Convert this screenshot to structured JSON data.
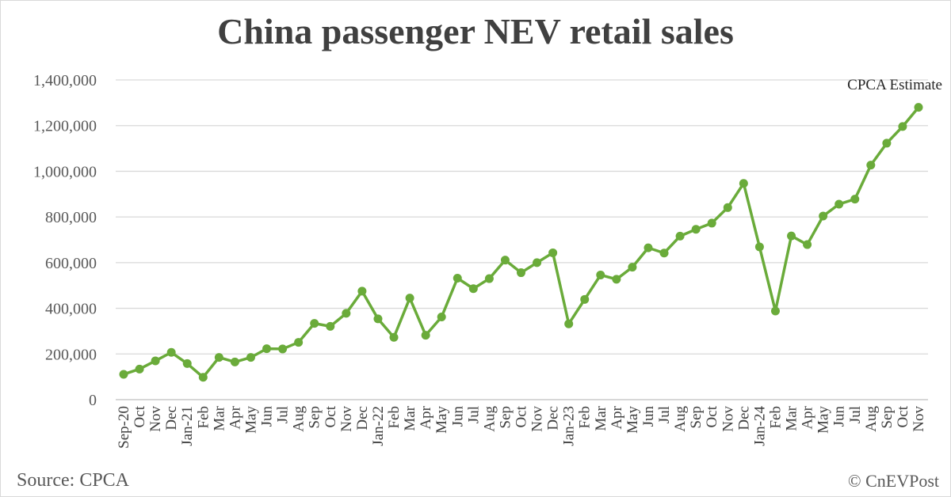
{
  "chart_data": {
    "type": "line",
    "title": "China passenger NEV retail sales",
    "categories": [
      "Sep-20",
      "Oct",
      "Nov",
      "Dec",
      "Jan-21",
      "Feb",
      "Mar",
      "Apr",
      "May",
      "Jun",
      "Jul",
      "Aug",
      "Sep",
      "Oct",
      "Nov",
      "Dec",
      "Jan-22",
      "Feb",
      "Mar",
      "Apr",
      "May",
      "Jun",
      "Jul",
      "Aug",
      "Sep",
      "Oct",
      "Nov",
      "Dec",
      "Jan-23",
      "Feb",
      "Mar",
      "Apr",
      "May",
      "Jun",
      "Jul",
      "Aug",
      "Sep",
      "Oct",
      "Nov",
      "Dec",
      "Jan-24",
      "Feb",
      "Mar",
      "Apr",
      "May",
      "Jun",
      "Jul",
      "Aug",
      "Sep",
      "Oct",
      "Nov"
    ],
    "values": [
      111000,
      134000,
      170000,
      207000,
      158000,
      98000,
      185000,
      165000,
      185000,
      223000,
      222000,
      251000,
      334000,
      321000,
      378000,
      475000,
      354000,
      273000,
      445000,
      282000,
      362000,
      532000,
      486000,
      530000,
      611000,
      556000,
      600000,
      643000,
      332000,
      439000,
      546000,
      527000,
      580000,
      665000,
      642000,
      716000,
      746000,
      773000,
      841000,
      947000,
      669000,
      388000,
      717000,
      679000,
      804000,
      856000,
      878000,
      1027000,
      1123000,
      1196000,
      1280000
    ],
    "ylim": [
      0,
      1400000
    ],
    "yticks": [
      0,
      200000,
      400000,
      600000,
      800000,
      1000000,
      1200000,
      1400000
    ],
    "ytick_labels": [
      "0",
      "200,000",
      "400,000",
      "600,000",
      "800,000",
      "1,000,000",
      "1,200,000",
      "1,400,000"
    ],
    "grid": true,
    "color": "#6aab3a",
    "annotation": "CPCA Estimate"
  },
  "footer": {
    "source": "Source: CPCA",
    "copyright": "© CnEVPost"
  }
}
